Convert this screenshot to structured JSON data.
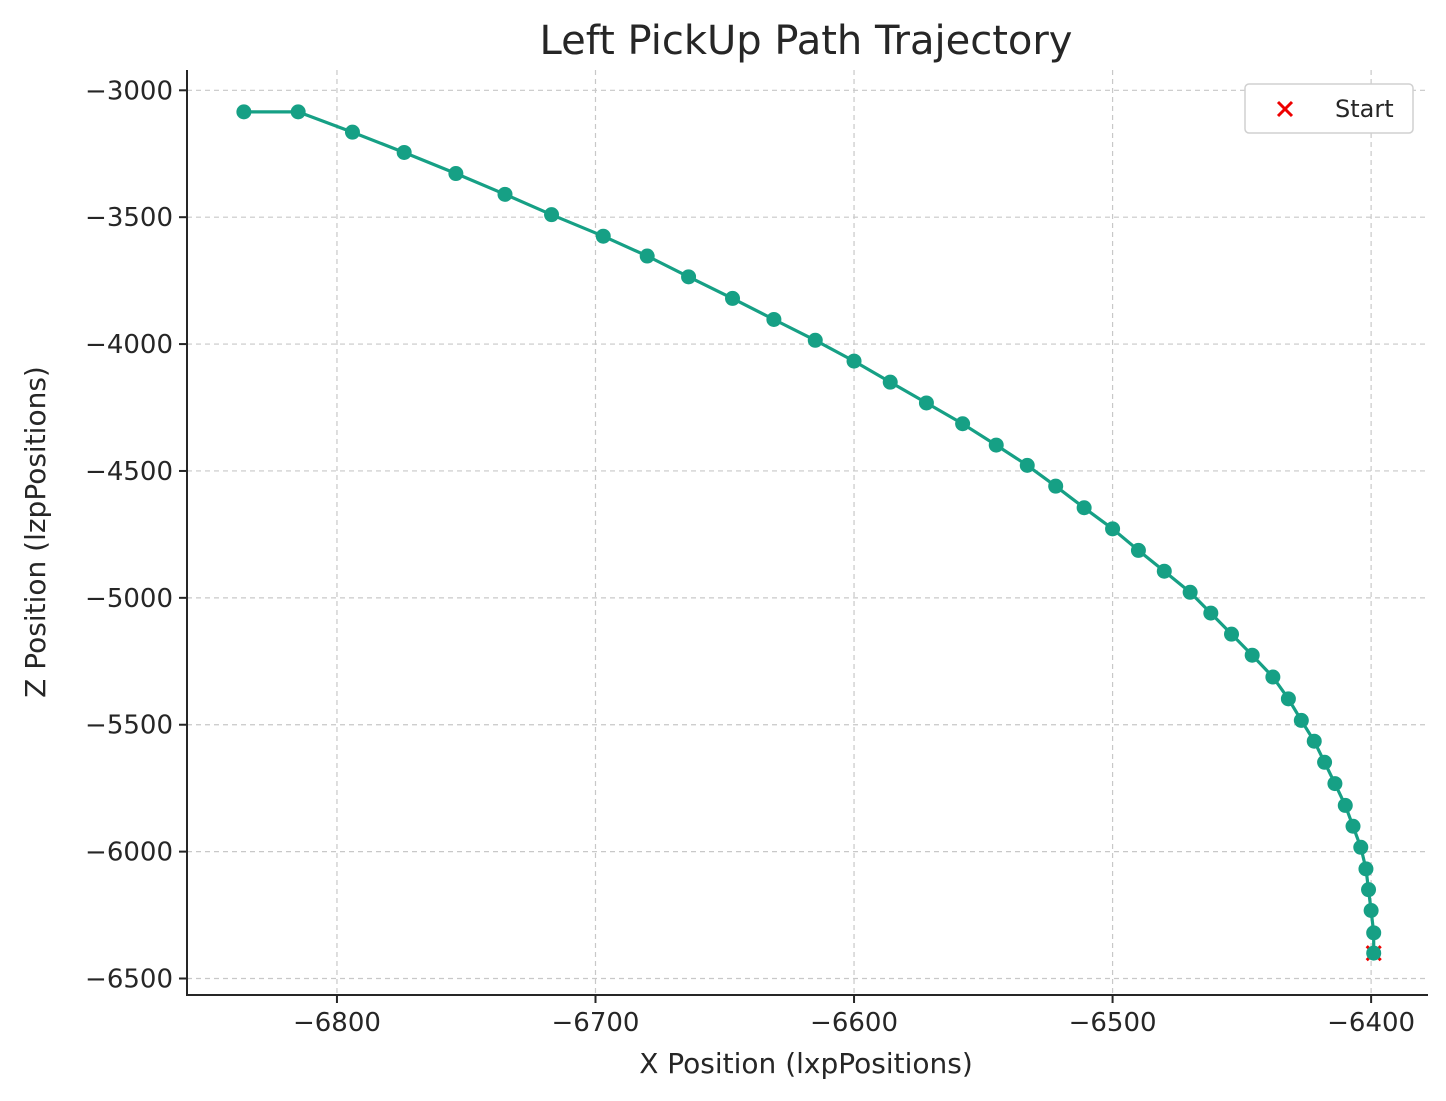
{
  "chart_data": {
    "type": "line",
    "title": "Left PickUp Path Trajectory",
    "xlabel": "X Position (lxpPositions)",
    "ylabel": "Z Position (lzpPositions)",
    "xlim": [
      -6858,
      -6378
    ],
    "ylim": [
      -6565,
      -2920
    ],
    "xticks": [
      -6800,
      -6700,
      -6600,
      -6500,
      -6400
    ],
    "yticks": [
      -3000,
      -3500,
      -4000,
      -4500,
      -5000,
      -5500,
      -6000,
      -6500
    ],
    "xtick_labels": [
      "−6800",
      "−6700",
      "−6600",
      "−6500",
      "−6400"
    ],
    "ytick_labels": [
      "−3000",
      "−3500",
      "−4000",
      "−4500",
      "−5000",
      "−5500",
      "−6000",
      "−6500"
    ],
    "grid": true,
    "legend_position": "top-right",
    "series": [
      {
        "type": "line",
        "color": "#16a085",
        "marker": "circle",
        "x": [
          -6399,
          -6399,
          -6400,
          -6401,
          -6402,
          -6404,
          -6407,
          -6410,
          -6414,
          -6418,
          -6422,
          -6427,
          -6432,
          -6438,
          -6446,
          -6454,
          -6462,
          -6470,
          -6480,
          -6490,
          -6500,
          -6511,
          -6522,
          -6533,
          -6545,
          -6558,
          -6572,
          -6586,
          -6600,
          -6615,
          -6631,
          -6647,
          -6664,
          -6680,
          -6697,
          -6717,
          -6735,
          -6754,
          -6774,
          -6794,
          -6815,
          -6836
        ],
        "y": [
          -6400,
          -6320,
          -6232,
          -6150,
          -6068,
          -5983,
          -5900,
          -5818,
          -5732,
          -5648,
          -5565,
          -5483,
          -5398,
          -5312,
          -5226,
          -5143,
          -5060,
          -4978,
          -4895,
          -4813,
          -4728,
          -4645,
          -4560,
          -4478,
          -4398,
          -4314,
          -4232,
          -4150,
          -4067,
          -3985,
          -3903,
          -3820,
          -3735,
          -3653,
          -3575,
          -3490,
          -3410,
          -3328,
          -3245,
          -3165,
          -3085,
          -3085
        ]
      },
      {
        "name": "Start",
        "type": "scatter",
        "color": "#ee0000",
        "marker": "x",
        "x": [
          -6399
        ],
        "y": [
          -6400
        ]
      }
    ]
  }
}
